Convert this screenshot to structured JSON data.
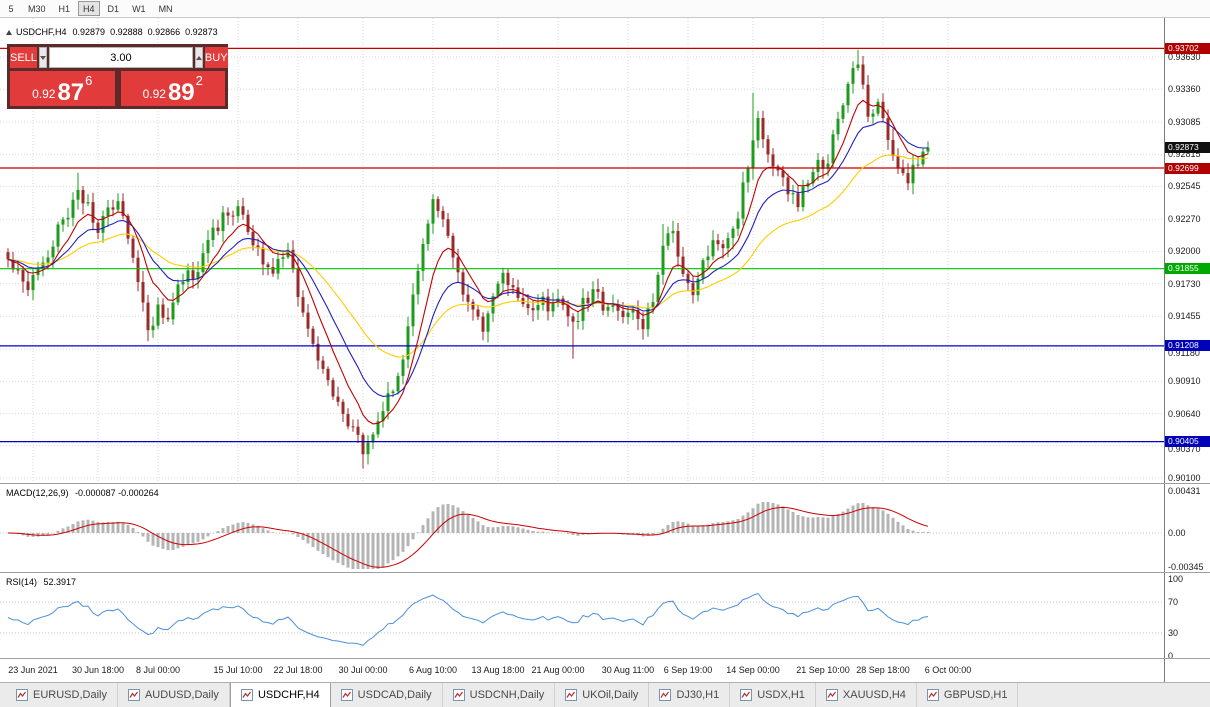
{
  "toolbar": {
    "timeframes": [
      "5",
      "M30",
      "H1",
      "H4",
      "D1",
      "W1",
      "MN"
    ],
    "active": "H4"
  },
  "chart": {
    "symbol": "USDCHF,H4",
    "open": "0.92879",
    "high": "0.92888",
    "low": "0.92866",
    "close": "0.92873"
  },
  "trade_panel": {
    "sell_label": "SELL",
    "buy_label": "BUY",
    "volume": "3.00",
    "sell_price": {
      "base": "0.92",
      "pips": "87",
      "point": "6"
    },
    "buy_price": {
      "base": "0.92",
      "pips": "89",
      "point": "2"
    }
  },
  "price_axis": {
    "ticks": [
      "0.93630",
      "0.93360",
      "0.93085",
      "0.92815",
      "0.92545",
      "0.92270",
      "0.92000",
      "0.91730",
      "0.91455",
      "0.91180",
      "0.90910",
      "0.90640",
      "0.90370",
      "0.90100"
    ],
    "badges": [
      {
        "label": "0.93702",
        "value": 0.93702,
        "color": "#b00000"
      },
      {
        "label": "0.92873",
        "value": 0.92873,
        "color": "#111111"
      },
      {
        "label": "0.92699",
        "value": 0.92699,
        "color": "#b00000"
      },
      {
        "label": "0.91855",
        "value": 0.91855,
        "color": "#00a800"
      },
      {
        "label": "0.91208",
        "value": 0.91208,
        "color": "#0000b8"
      },
      {
        "label": "0.90405",
        "value": 0.90405,
        "color": "#0000b8"
      }
    ]
  },
  "indicators": {
    "macd": {
      "label": "MACD(12,26,9)",
      "values": "-0.000087 -0.000264",
      "axis": [
        "0.00431",
        "0.00",
        "-0.00345"
      ],
      "histogram_color": "#b4b4b4",
      "signal_color": "#cc0000"
    },
    "rsi": {
      "label": "RSI(14)",
      "value": "52.3917",
      "axis": [
        "100",
        "70",
        "30",
        "0"
      ],
      "line_color": "#4a90d9"
    }
  },
  "date_axis": [
    {
      "text": "23 Jun 2021",
      "i": 5
    },
    {
      "text": "30 Jun 18:00",
      "i": 18
    },
    {
      "text": "8 Jul 00:00",
      "i": 30
    },
    {
      "text": "15 Jul 10:00",
      "i": 46
    },
    {
      "text": "22 Jul 18:00",
      "i": 58
    },
    {
      "text": "30 Jul 00:00",
      "i": 71
    },
    {
      "text": "6 Aug 10:00",
      "i": 85
    },
    {
      "text": "13 Aug 18:00",
      "i": 98
    },
    {
      "text": "21 Aug 00:00",
      "i": 110
    },
    {
      "text": "30 Aug 11:00",
      "i": 124
    },
    {
      "text": "6 Sep 19:00",
      "i": 136
    },
    {
      "text": "14 Sep 00:00",
      "i": 149
    },
    {
      "text": "21 Sep 10:00",
      "i": 163
    },
    {
      "text": "28 Sep 18:00",
      "i": 175
    },
    {
      "text": "6 Oct 00:00",
      "i": 188
    }
  ],
  "tabs": [
    "EURUSD,Daily",
    "AUDUSD,Daily",
    "USDCHF,H4",
    "USDCAD,Daily",
    "USDCNH,Daily",
    "UKOil,Daily",
    "DJ30,H1",
    "USDX,H1",
    "XAUUSD,H4",
    "GBPUSD,H1"
  ],
  "active_tab": "USDCHF,H4",
  "colors": {
    "accent_red": "#e13b3b",
    "trade_panel_bg": "#5d2a2a",
    "grid": "#dadada"
  },
  "chart_data": {
    "type": "candlestick",
    "symbol": "USDCHF",
    "timeframe": "H4",
    "visible_price_range": [
      0.901,
      0.9372
    ],
    "n_candles": 185,
    "close_anchors": [
      [
        0,
        0.9193
      ],
      [
        2,
        0.9185
      ],
      [
        4,
        0.917
      ],
      [
        6,
        0.9182
      ],
      [
        9,
        0.921
      ],
      [
        12,
        0.9235
      ],
      [
        14,
        0.9252
      ],
      [
        16,
        0.924
      ],
      [
        18,
        0.9218
      ],
      [
        20,
        0.923
      ],
      [
        22,
        0.9245
      ],
      [
        24,
        0.9215
      ],
      [
        26,
        0.9175
      ],
      [
        28,
        0.9136
      ],
      [
        30,
        0.9152
      ],
      [
        32,
        0.9148
      ],
      [
        34,
        0.9173
      ],
      [
        36,
        0.9182
      ],
      [
        38,
        0.9178
      ],
      [
        40,
        0.9205
      ],
      [
        42,
        0.9222
      ],
      [
        44,
        0.9232
      ],
      [
        46,
        0.9239
      ],
      [
        48,
        0.922
      ],
      [
        50,
        0.9198
      ],
      [
        52,
        0.9183
      ],
      [
        54,
        0.919
      ],
      [
        56,
        0.9197
      ],
      [
        58,
        0.9166
      ],
      [
        60,
        0.914
      ],
      [
        62,
        0.9108
      ],
      [
        64,
        0.9088
      ],
      [
        66,
        0.9072
      ],
      [
        68,
        0.9058
      ],
      [
        70,
        0.9044
      ],
      [
        71,
        0.903
      ],
      [
        73,
        0.9046
      ],
      [
        75,
        0.9068
      ],
      [
        77,
        0.9085
      ],
      [
        79,
        0.9108
      ],
      [
        81,
        0.916
      ],
      [
        83,
        0.9212
      ],
      [
        85,
        0.9238
      ],
      [
        87,
        0.9228
      ],
      [
        89,
        0.9198
      ],
      [
        91,
        0.9166
      ],
      [
        93,
        0.915
      ],
      [
        95,
        0.9132
      ],
      [
        97,
        0.9158
      ],
      [
        99,
        0.918
      ],
      [
        101,
        0.9168
      ],
      [
        103,
        0.9152
      ],
      [
        105,
        0.9147
      ],
      [
        107,
        0.9157
      ],
      [
        109,
        0.915
      ],
      [
        111,
        0.916
      ],
      [
        113,
        0.9135
      ],
      [
        115,
        0.9158
      ],
      [
        117,
        0.9165
      ],
      [
        119,
        0.9155
      ],
      [
        121,
        0.916
      ],
      [
        123,
        0.915
      ],
      [
        125,
        0.9156
      ],
      [
        127,
        0.9137
      ],
      [
        129,
        0.9162
      ],
      [
        131,
        0.9204
      ],
      [
        133,
        0.9214
      ],
      [
        135,
        0.9186
      ],
      [
        137,
        0.9168
      ],
      [
        139,
        0.9194
      ],
      [
        141,
        0.921
      ],
      [
        143,
        0.9198
      ],
      [
        145,
        0.9215
      ],
      [
        147,
        0.9252
      ],
      [
        149,
        0.93
      ],
      [
        150,
        0.931
      ],
      [
        152,
        0.9285
      ],
      [
        154,
        0.9268
      ],
      [
        156,
        0.9247
      ],
      [
        158,
        0.924
      ],
      [
        160,
        0.9257
      ],
      [
        162,
        0.9272
      ],
      [
        164,
        0.928
      ],
      [
        166,
        0.9308
      ],
      [
        168,
        0.9338
      ],
      [
        170,
        0.9358
      ],
      [
        172,
        0.9308
      ],
      [
        174,
        0.932
      ],
      [
        176,
        0.9298
      ],
      [
        178,
        0.9272
      ],
      [
        180,
        0.9262
      ],
      [
        182,
        0.9276
      ],
      [
        184,
        0.9287
      ]
    ],
    "wick_spikes": [
      {
        "i": 14,
        "high": 0.9266
      },
      {
        "i": 71,
        "low": 0.9018
      },
      {
        "i": 85,
        "high": 0.9248
      },
      {
        "i": 113,
        "low": 0.911
      },
      {
        "i": 131,
        "high": 0.9223
      },
      {
        "i": 149,
        "high": 0.9333
      },
      {
        "i": 170,
        "high": 0.9369
      }
    ],
    "h_lines": [
      {
        "price": 0.93702,
        "color": "#c00000"
      },
      {
        "price": 0.92699,
        "color": "#c00000"
      },
      {
        "price": 0.91855,
        "color": "#00c000"
      },
      {
        "price": 0.91208,
        "color": "#0000c8"
      },
      {
        "price": 0.90405,
        "color": "#0000c8"
      }
    ],
    "moving_averages": [
      {
        "period": 34,
        "color": "#ffcc00"
      },
      {
        "period": 16,
        "color": "#2020c0"
      },
      {
        "period": 8,
        "color": "#c00000"
      }
    ],
    "candle_colors": {
      "up": "#1e9b1e",
      "down": "#9b2b2b"
    }
  }
}
